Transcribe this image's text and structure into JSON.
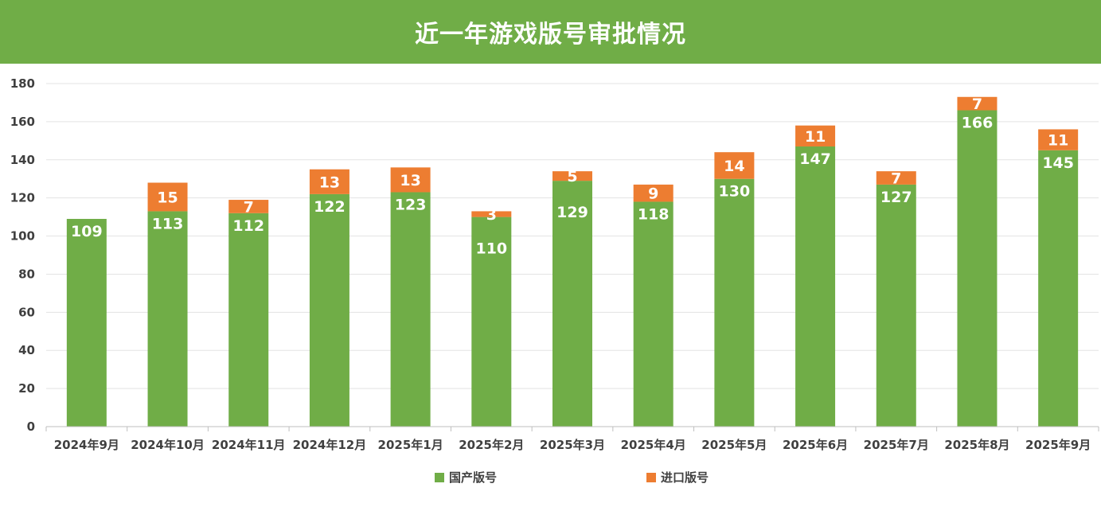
{
  "chart_data": {
    "type": "bar",
    "stacked": true,
    "title": "近一年游戏版号审批情况",
    "categories": [
      "2024年9月",
      "2024年10月",
      "2024年11月",
      "2024年12月",
      "2025年1月",
      "2025年2月",
      "2025年3月",
      "2025年4月",
      "2025年5月",
      "2025年6月",
      "2025年7月",
      "2025年8月",
      "2025年9月"
    ],
    "series": [
      {
        "name": "国产版号",
        "color": "#70ad47",
        "values": [
          109,
          113,
          112,
          122,
          123,
          110,
          129,
          118,
          130,
          147,
          127,
          166,
          145
        ]
      },
      {
        "name": "进口版号",
        "color": "#ed7d31",
        "values": [
          null,
          15,
          7,
          13,
          13,
          3,
          5,
          9,
          14,
          11,
          7,
          7,
          11
        ]
      }
    ],
    "ylim": [
      0,
      180
    ],
    "yticks": [
      0,
      20,
      40,
      60,
      80,
      100,
      120,
      140,
      160,
      180
    ],
    "grid": true,
    "legend_position": "bottom-center",
    "xlabel": "",
    "ylabel": ""
  }
}
